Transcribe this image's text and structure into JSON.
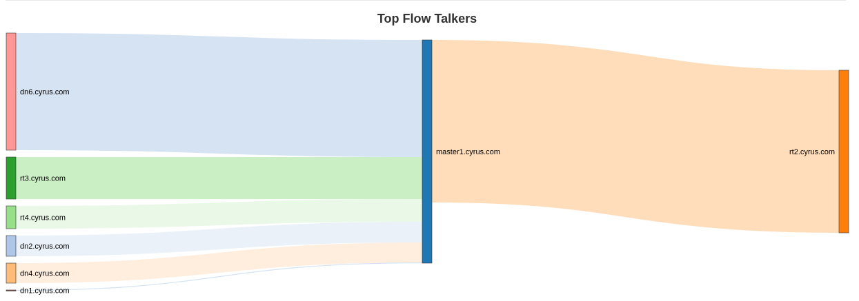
{
  "chart_data": {
    "type": "sankey",
    "title": "Top Flow Talkers",
    "nodes": [
      {
        "id": "dn6",
        "name": "dn6.cyrus.com",
        "color": "#ff9896"
      },
      {
        "id": "rt3",
        "name": "rt3.cyrus.com",
        "color": "#2ca02c"
      },
      {
        "id": "rt4",
        "name": "rt4.cyrus.com",
        "color": "#98df8a"
      },
      {
        "id": "dn2",
        "name": "dn2.cyrus.com",
        "color": "#aec7e8"
      },
      {
        "id": "dn4",
        "name": "dn4.cyrus.com",
        "color": "#ffbb78"
      },
      {
        "id": "dn1",
        "name": "dn1.cyrus.com",
        "color": "#8c564b"
      },
      {
        "id": "master1",
        "name": "master1.cyrus.com",
        "color": "#1f77b4"
      },
      {
        "id": "rt2",
        "name": "rt2.cyrus.com",
        "color": "#ff7f0e"
      }
    ],
    "links": [
      {
        "source": "dn6",
        "target": "master1",
        "value": 170,
        "color": "#aec7e8"
      },
      {
        "source": "rt3",
        "target": "master1",
        "value": 61,
        "color": "#98df8a"
      },
      {
        "source": "rt4",
        "target": "master1",
        "value": 33,
        "color": "#d5f2cf"
      },
      {
        "source": "dn2",
        "target": "master1",
        "value": 30,
        "color": "#d6e3f3"
      },
      {
        "source": "dn4",
        "target": "master1",
        "value": 29,
        "color": "#ffdcbc"
      },
      {
        "source": "dn1",
        "target": "master1",
        "value": 1,
        "color": "#aec7e8"
      },
      {
        "source": "master1",
        "target": "rt2",
        "value": 236,
        "color": "#ffbb78"
      }
    ]
  }
}
